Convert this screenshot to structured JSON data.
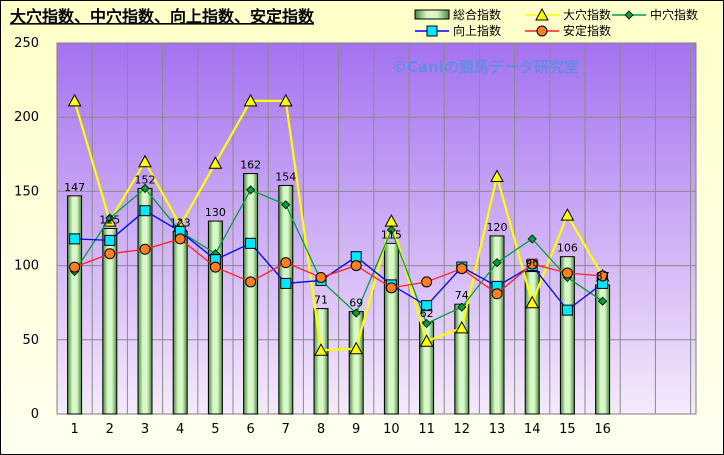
{
  "chart_data": {
    "type": "bar",
    "title": "大穴指数、中穴指数、向上指数、安定指数",
    "watermark": "©Caniの競馬データ研究室",
    "categories": [
      "1",
      "2",
      "3",
      "4",
      "5",
      "6",
      "7",
      "8",
      "9",
      "10",
      "11",
      "12",
      "13",
      "14",
      "15",
      "16"
    ],
    "ylim": [
      0,
      250
    ],
    "yticks": [
      0,
      50,
      100,
      150,
      200,
      250
    ],
    "grid": true,
    "legend_placement": "top-right",
    "series": [
      {
        "name": "総合指数",
        "kind": "bar",
        "color": "#c8f0b8",
        "values": [
          147,
          125,
          152,
          123,
          130,
          162,
          154,
          71,
          69,
          115,
          62,
          74,
          120,
          96,
          106,
          87
        ]
      },
      {
        "name": "大穴指数",
        "kind": "line",
        "marker": "triangle",
        "color": "#ffff00",
        "values": [
          211,
          130,
          170,
          127,
          169,
          211,
          211,
          43,
          44,
          130,
          49,
          58,
          160,
          75,
          134,
          93
        ]
      },
      {
        "name": "中穴指数",
        "kind": "line",
        "marker": "diamond",
        "color": "#00a040",
        "values": [
          96,
          132,
          152,
          123,
          108,
          151,
          141,
          90,
          68,
          124,
          61,
          72,
          102,
          118,
          92,
          76
        ]
      },
      {
        "name": "向上指数",
        "kind": "line",
        "marker": "square",
        "color": "#0000ff",
        "values": [
          118,
          117,
          137,
          123,
          104,
          115,
          88,
          90,
          106,
          87,
          73,
          99,
          86,
          100,
          70,
          88
        ]
      },
      {
        "name": "安定指数",
        "kind": "line",
        "marker": "circle",
        "color": "#ff2020",
        "values": [
          99,
          108,
          111,
          118,
          99,
          89,
          102,
          92,
          100,
          85,
          89,
          98,
          81,
          101,
          95,
          93
        ]
      }
    ]
  }
}
